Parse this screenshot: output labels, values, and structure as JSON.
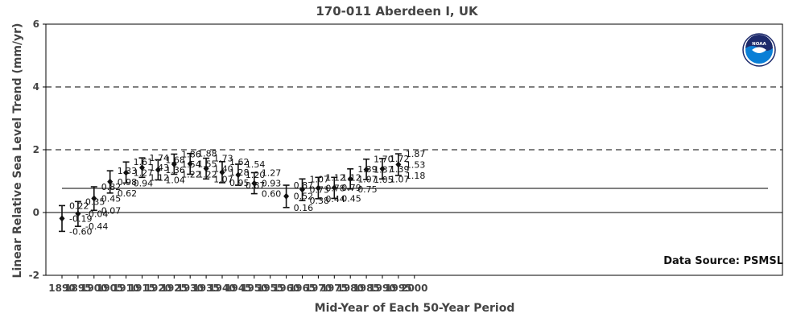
{
  "chart_data": {
    "type": "scatter",
    "title": "170-011 Aberdeen I, UK",
    "xlabel": "Mid-Year of Each 50-Year Period",
    "ylabel": "Linear Relative Sea Level Trend (mm/yr)",
    "xlim": [
      1887,
      2004
    ],
    "ylim": [
      -2,
      6
    ],
    "x_ticks": [
      1890,
      1895,
      1900,
      1905,
      1910,
      1915,
      1920,
      1925,
      1930,
      1935,
      1940,
      1945,
      1950,
      1955,
      1960,
      1965,
      1970,
      1975,
      1980,
      1985,
      1990,
      1995,
      2000
    ],
    "y_ticks": [
      -2,
      0,
      2,
      4,
      6
    ],
    "dashed_reference_lines": [
      2,
      4
    ],
    "solid_reference_line": 0,
    "overall_trend_line": 0.77,
    "points": [
      {
        "x": 1890,
        "value": -0.19,
        "upper": 0.22,
        "lower": -0.6,
        "value_label": "-0.19",
        "upper_label": "0.22",
        "lower_label": "-0.60"
      },
      {
        "x": 1895,
        "value": -0.04,
        "upper": 0.35,
        "lower": -0.44,
        "value_label": "-0.04",
        "upper_label": "0.35",
        "lower_label": "-0.44"
      },
      {
        "x": 1900,
        "value": 0.45,
        "upper": 0.82,
        "lower": 0.07,
        "value_label": "0.45",
        "upper_label": "0.82",
        "lower_label": "0.07"
      },
      {
        "x": 1905,
        "value": 0.98,
        "upper": 1.33,
        "lower": 0.62,
        "value_label": "0.98",
        "upper_label": "1.33",
        "lower_label": "0.62"
      },
      {
        "x": 1910,
        "value": 1.27,
        "upper": 1.61,
        "lower": 0.94,
        "value_label": "1.27",
        "upper_label": "1.61",
        "lower_label": "0.94"
      },
      {
        "x": 1915,
        "value": 1.43,
        "upper": 1.74,
        "lower": 1.12,
        "value_label": "1.43",
        "upper_label": "1.74",
        "lower_label": "1.12"
      },
      {
        "x": 1920,
        "value": 1.36,
        "upper": 1.68,
        "lower": 1.04,
        "value_label": "1.36",
        "upper_label": "1.68",
        "lower_label": "1.04"
      },
      {
        "x": 1925,
        "value": 1.54,
        "upper": 1.86,
        "lower": 1.22,
        "value_label": "1.54",
        "upper_label": "1.86",
        "lower_label": "1.22"
      },
      {
        "x": 1930,
        "value": 1.55,
        "upper": 1.88,
        "lower": 1.22,
        "value_label": "1.55",
        "upper_label": "1.88",
        "lower_label": "1.22"
      },
      {
        "x": 1935,
        "value": 1.4,
        "upper": 1.73,
        "lower": 1.07,
        "value_label": "1.40",
        "upper_label": "1.73",
        "lower_label": "1.07"
      },
      {
        "x": 1940,
        "value": 1.28,
        "upper": 1.62,
        "lower": 0.95,
        "value_label": "1.28",
        "upper_label": "1.62",
        "lower_label": "0.95"
      },
      {
        "x": 1945,
        "value": 1.2,
        "upper": 1.54,
        "lower": 0.87,
        "value_label": "1.20",
        "upper_label": "1.54",
        "lower_label": "0.87"
      },
      {
        "x": 1950,
        "value": 0.93,
        "upper": 1.27,
        "lower": 0.6,
        "value_label": "0.93",
        "upper_label": "1.27",
        "lower_label": "0.60"
      },
      {
        "x": 1960,
        "value": 0.52,
        "upper": 0.87,
        "lower": 0.16,
        "value_label": "0.52",
        "upper_label": "0.87",
        "lower_label": "0.16"
      },
      {
        "x": 1965,
        "value": 0.73,
        "upper": 1.07,
        "lower": 0.38,
        "value_label": "0.73",
        "upper_label": "1.07",
        "lower_label": "0.38"
      },
      {
        "x": 1970,
        "value": 0.78,
        "upper": 1.12,
        "lower": 0.44,
        "value_label": "0.78",
        "upper_label": "1.12",
        "lower_label": "0.44"
      },
      {
        "x": 1975,
        "value": 0.79,
        "upper": 1.12,
        "lower": 0.45,
        "value_label": "0.79",
        "upper_label": "1.12",
        "lower_label": "0.45"
      },
      {
        "x": 1980,
        "value": 1.07,
        "upper": 1.39,
        "lower": 0.75,
        "value_label": "1.07",
        "upper_label": "1.39",
        "lower_label": "0.75"
      },
      {
        "x": 1985,
        "value": 1.37,
        "upper": 1.7,
        "lower": 1.05,
        "value_label": "1.37",
        "upper_label": "1.70",
        "lower_label": "1.05"
      },
      {
        "x": 1990,
        "value": 1.39,
        "upper": 1.72,
        "lower": 1.07,
        "value_label": "1.39",
        "upper_label": "1.72",
        "lower_label": "1.07"
      },
      {
        "x": 1995,
        "value": 1.53,
        "upper": 1.87,
        "lower": 1.18,
        "value_label": "1.53",
        "upper_label": "1.87",
        "lower_label": "1.18"
      }
    ],
    "annotation": "Data Source: PSMSL",
    "logo": "noaa-logo",
    "grid": false,
    "legend": "none"
  },
  "colors": {
    "text": "#444444",
    "marks": "#111111",
    "noaa_blue": "#0a7fd6",
    "noaa_dark": "#1d2a6b"
  }
}
